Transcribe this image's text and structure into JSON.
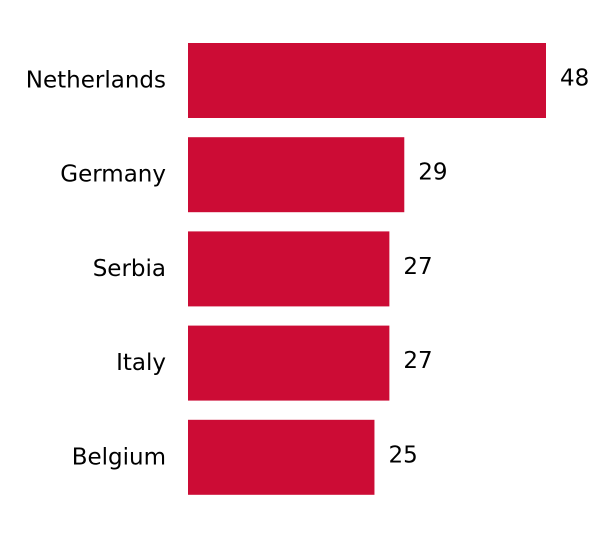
{
  "chart_data": {
    "type": "bar",
    "orientation": "horizontal",
    "categories": [
      "Netherlands",
      "Germany",
      "Serbia",
      "Italy",
      "Belgium"
    ],
    "values": [
      48,
      29,
      27,
      27,
      25
    ],
    "title": "",
    "xlabel": "",
    "ylabel": "",
    "xlim": [
      0,
      48
    ],
    "grid": false,
    "legend": "none",
    "bar_color": "#cc0c35"
  }
}
